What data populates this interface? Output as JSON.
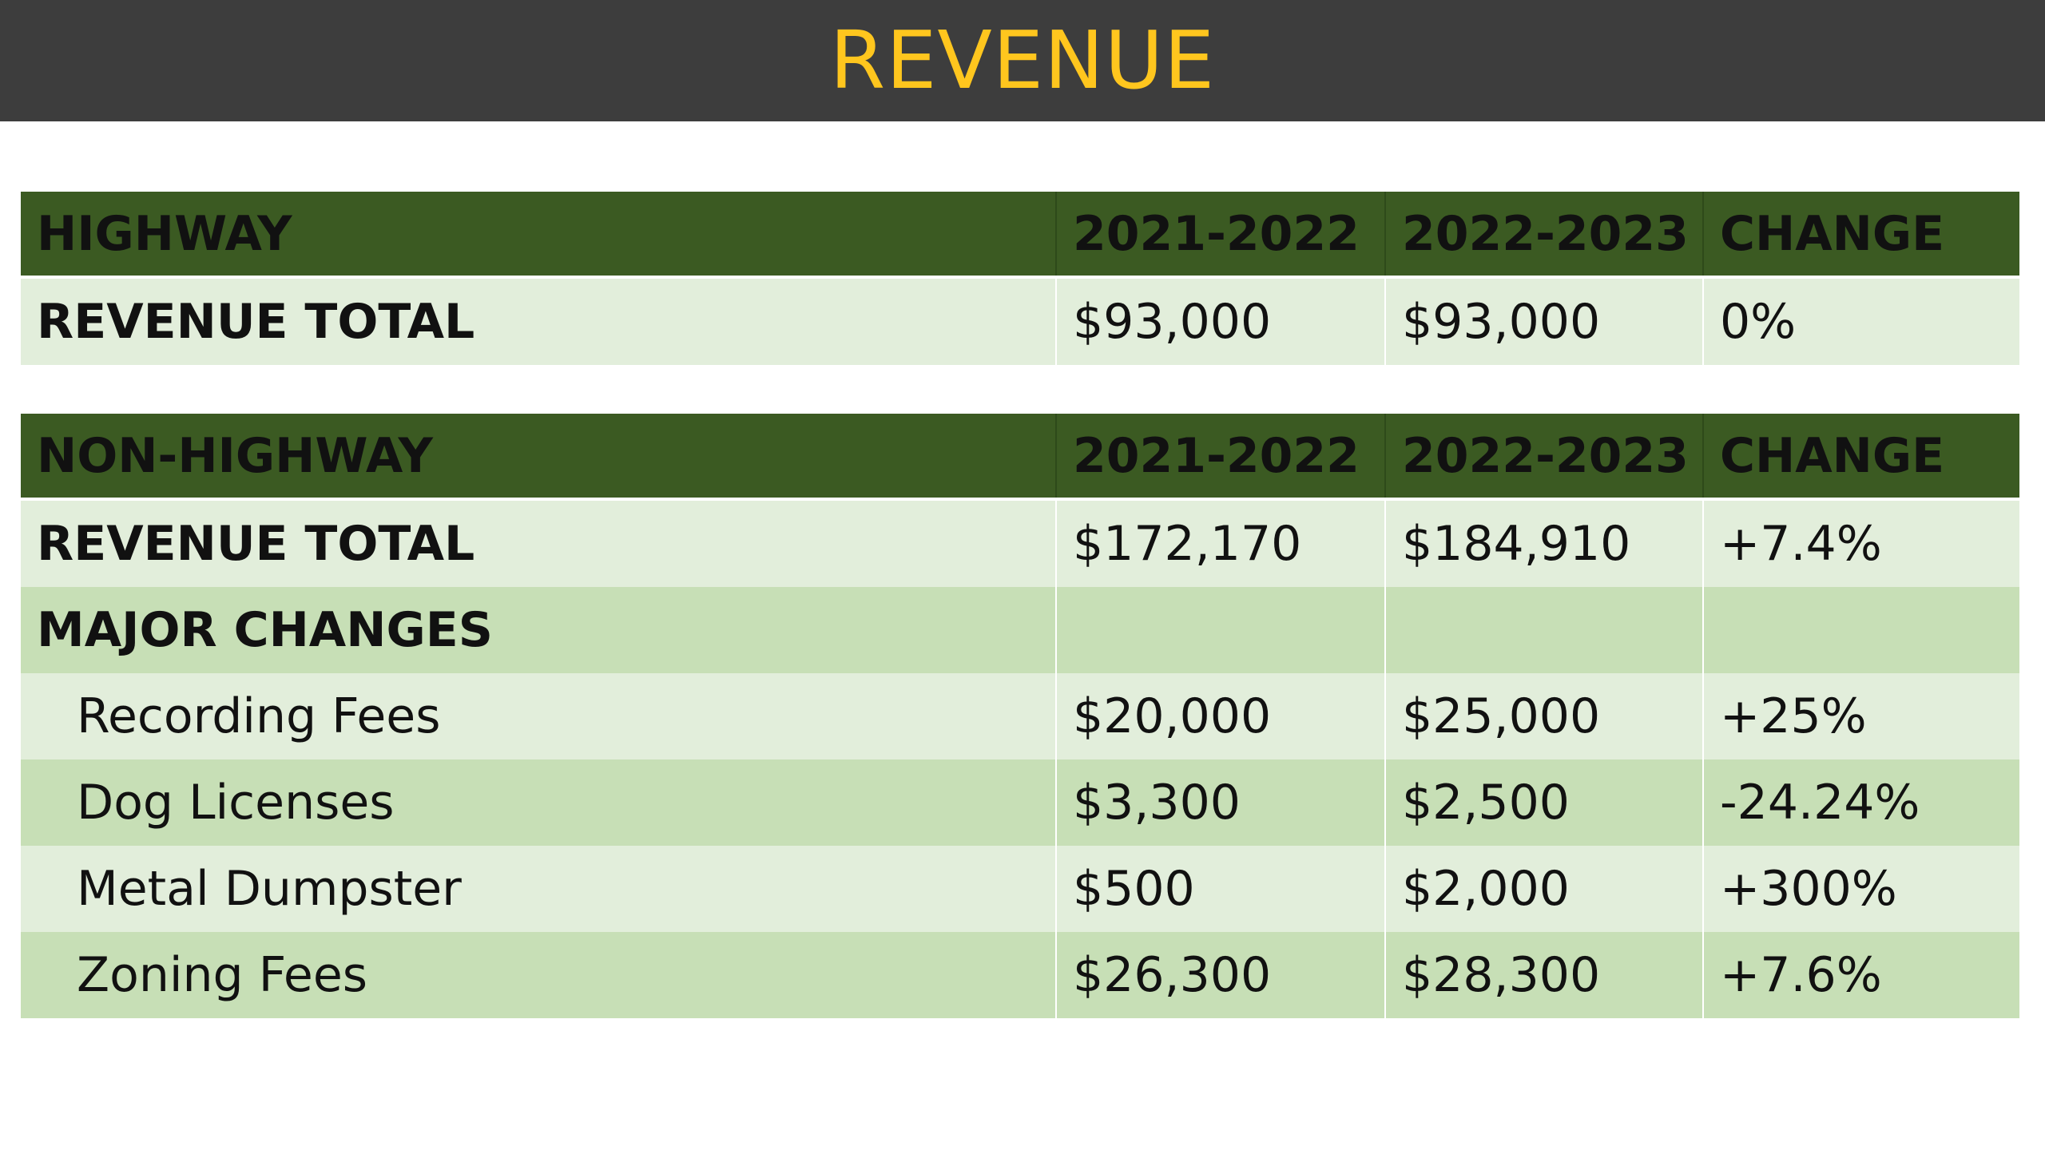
{
  "title": "REVENUE",
  "highway": {
    "header": [
      "HIGHWAY",
      "2021-2022",
      "2022-2023",
      "CHANGE"
    ],
    "rows": [
      {
        "label": "REVENUE TOTAL",
        "y2021": "$93,000",
        "y2022": "$93,000",
        "change": "0%"
      }
    ]
  },
  "nonhighway": {
    "header": [
      "NON-HIGHWAY",
      "2021-2022",
      "2022-2023",
      "CHANGE"
    ],
    "total": {
      "label": "REVENUE TOTAL",
      "y2021": "$172,170",
      "y2022": "$184,910",
      "change": "+7.4%"
    },
    "major_changes_label": "MAJOR CHANGES",
    "items": [
      {
        "label": "Recording Fees",
        "y2021": "$20,000",
        "y2022": "$25,000",
        "change": "+25%"
      },
      {
        "label": "Dog Licenses",
        "y2021": "$3,300",
        "y2022": "$2,500",
        "change": "-24.24%"
      },
      {
        "label": "Metal Dumpster",
        "y2021": "$500",
        "y2022": "$2,000",
        "change": "+300%"
      },
      {
        "label": "Zoning Fees",
        "y2021": "$26,300",
        "y2022": "$28,300",
        "change": "+7.6%"
      }
    ]
  },
  "colors": {
    "title_bar": "#3d3d3d",
    "title_text": "#ffc61e",
    "header_green": "#3b5a22",
    "row_light": "#e2eedb",
    "row_mid": "#c7dfb6"
  }
}
